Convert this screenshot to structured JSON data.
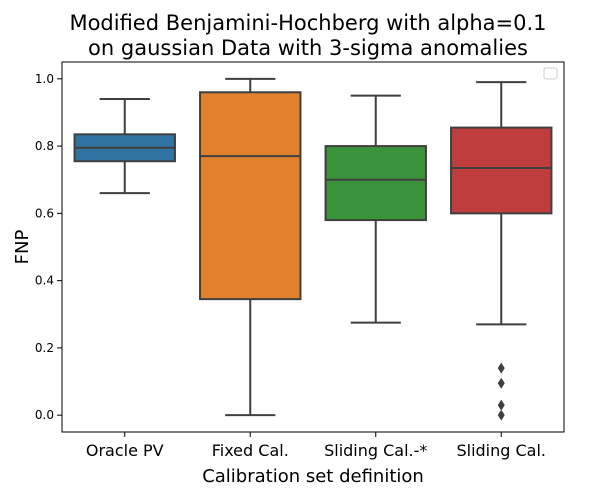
{
  "chart_data": {
    "type": "box",
    "title_lines": [
      "Modified Benjamini-Hochberg with alpha=0.1",
      "on gaussian Data with 3-sigma anomalies"
    ],
    "xlabel": "Calibration set definition",
    "ylabel": "FNP",
    "ylim": [
      -0.05,
      1.05
    ],
    "yticks": [
      0.0,
      0.2,
      0.4,
      0.6,
      0.8,
      1.0
    ],
    "ytick_labels": [
      "0.0",
      "0.2",
      "0.4",
      "0.6",
      "0.8",
      "1.0"
    ],
    "legend": "upper right",
    "boxes": [
      {
        "label": "Oracle PV",
        "color": "#3274a1",
        "whisker_low": 0.66,
        "q1": 0.755,
        "median": 0.795,
        "q3": 0.835,
        "whisker_high": 0.94,
        "outliers": []
      },
      {
        "label": "Fixed Cal.",
        "color": "#e1812c",
        "whisker_low": 0.0,
        "q1": 0.345,
        "median": 0.77,
        "q3": 0.96,
        "whisker_high": 1.0,
        "outliers": []
      },
      {
        "label": "Sliding Cal.-*",
        "color": "#3a923a",
        "whisker_low": 0.275,
        "q1": 0.58,
        "median": 0.7,
        "q3": 0.8,
        "whisker_high": 0.95,
        "outliers": []
      },
      {
        "label": "Sliding Cal.",
        "color": "#c03d3e",
        "whisker_low": 0.27,
        "q1": 0.6,
        "median": 0.735,
        "q3": 0.855,
        "whisker_high": 0.99,
        "outliers": [
          0.0,
          0.03,
          0.095,
          0.14
        ]
      }
    ]
  }
}
